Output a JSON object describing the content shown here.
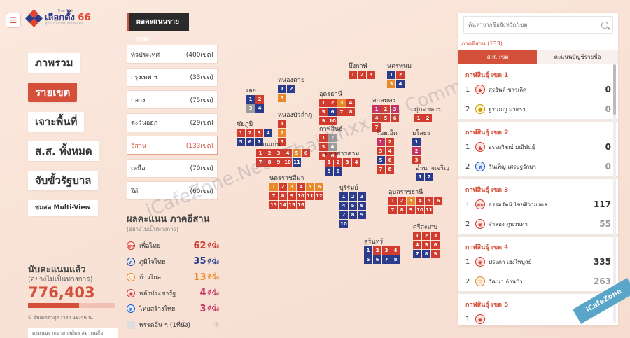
{
  "header": {
    "menu_icon": "hamburger-icon",
    "logo_small": "Thai PBS",
    "logo_title_a": "เลือกตั้ง",
    "logo_title_b": "66",
    "logo_subtitle": "คู่มือประชาชนนักเลือกตั้ง"
  },
  "nav": [
    {
      "label": "ภาพรวม",
      "active": false
    },
    {
      "label": "รายเขต",
      "active": true
    },
    {
      "label": "เจาะพื้นที่",
      "active": false
    },
    {
      "label": "ส.ส. ทั้งหมด",
      "active": false
    },
    {
      "label": "จับขั้วรัฐบาล",
      "active": false
    },
    {
      "label": "ชมสด Multi-View",
      "active": false
    }
  ],
  "count": {
    "label": "นับคะแนนแล้ว",
    "sub": "(อย่างไม่เป็นทางการ)",
    "value": "776,403",
    "progress": 0.58,
    "update": "อัปเดตล่าสุด เวลา 19:46 น.",
    "note": "คะแนนจากอาสาสมัคร สมาคมสื่อ, กกต."
  },
  "regions": {
    "title": "ผลคะแนนรายเขต",
    "items": [
      {
        "name": "ทั่วประเทศ",
        "count": "(400เขต)",
        "active": false
      },
      {
        "name": "กรุงเทพ ฯ",
        "count": "(33เขต)",
        "active": false
      },
      {
        "name": "กลาง",
        "count": "(75เขต)",
        "active": false
      },
      {
        "name": "ตะวันออก",
        "count": "(29เขต)",
        "active": false
      },
      {
        "name": "อีสาน",
        "count": "(133เขต)",
        "active": true
      },
      {
        "name": "เหนือ",
        "count": "(70เขต)",
        "active": false
      },
      {
        "name": "ใต้",
        "count": "(60เขต)",
        "active": false
      }
    ]
  },
  "party_summary": {
    "title": "ผลคะแนน ภาคอีสาน",
    "sub": "(อย่างไม่เป็นทางการ)",
    "unit": "ที่นั่ง",
    "items": [
      {
        "name": "เพื่อไทย",
        "count": "62",
        "color": "#d13c2f",
        "logo": "pheu-thai-logo",
        "glyph": "พท",
        "logo_class": "lg-red"
      },
      {
        "name": "ภูมิใจไทย",
        "count": "35",
        "color": "#2c3c8c",
        "logo": "bhumjaithai-logo",
        "glyph": "ภ",
        "logo_class": "lg-navy"
      },
      {
        "name": "ก้าวไกล",
        "count": "13",
        "color": "#e88a2a",
        "logo": "move-forward-logo",
        "glyph": "▽",
        "logo_class": "lg-orange"
      },
      {
        "name": "พลังประชารัฐ",
        "count": "4",
        "color": "#c23360",
        "logo": "palang-pracharat-logo",
        "glyph": "◉",
        "logo_class": "lg-red"
      },
      {
        "name": "ไทยสร้างไทย",
        "count": "3",
        "color": "#c23360",
        "logo": "thai-sang-thai-logo",
        "glyph": "ส",
        "logo_class": "lg-blue"
      },
      {
        "name": "พรรคอื่น ๆ (1ที่นั่ง)",
        "count": "",
        "color": "#666666",
        "logo": "others-logo",
        "glyph": "",
        "logo_class": "lg-grey"
      }
    ]
  },
  "map": [
    {
      "name": "บึงกาฬ",
      "cells": [
        [
          "1",
          "r"
        ],
        [
          "2",
          "r"
        ],
        [
          "3",
          "r"
        ]
      ]
    },
    {
      "name": "นครพนม",
      "cells": [
        [
          "1",
          "n"
        ],
        [
          "2",
          "r"
        ],
        [
          "3",
          "o"
        ],
        [
          "4",
          "n"
        ]
      ]
    },
    {
      "name": "หนองคาย",
      "cells": [
        [
          "1",
          "n"
        ],
        [
          "2",
          "n"
        ],
        [
          "3",
          "o"
        ]
      ]
    },
    {
      "name": "เลย",
      "cells": [
        [
          "1",
          "n"
        ],
        [
          "2",
          "r"
        ],
        [
          "3",
          "g"
        ],
        [
          "4",
          "n"
        ]
      ]
    },
    {
      "name": "อุดรธานี",
      "cells": [
        [
          "1",
          "r"
        ],
        [
          "2",
          "r"
        ],
        [
          "3",
          "o"
        ],
        [
          "4",
          "r"
        ],
        [
          "5",
          "r"
        ],
        [
          "6",
          "n"
        ],
        [
          "7",
          "r"
        ],
        [
          "8",
          "r"
        ],
        [
          "9",
          "r"
        ],
        [
          "10",
          "r"
        ]
      ]
    },
    {
      "name": "สกลนคร",
      "cells": [
        [
          "1",
          "m"
        ],
        [
          "2",
          "r"
        ],
        [
          "3",
          "m"
        ],
        [
          "4",
          "r"
        ],
        [
          "5",
          "r"
        ],
        [
          "6",
          "r"
        ],
        [
          "7",
          "r"
        ]
      ]
    },
    {
      "name": "มุกดาหาร",
      "cells": [
        [
          "1",
          "r"
        ],
        [
          "2",
          "r"
        ]
      ]
    },
    {
      "name": "หนองบัวลำภู",
      "cells": [
        [
          "1",
          "r"
        ],
        [
          "2",
          "o"
        ],
        [
          "3",
          "r"
        ]
      ]
    },
    {
      "name": "ชัยภูมิ",
      "cells": [
        [
          "1",
          "r"
        ],
        [
          "2",
          "r"
        ],
        [
          "3",
          "r"
        ],
        [
          "4",
          "n"
        ],
        [
          "5",
          "n"
        ],
        [
          "6",
          "n"
        ],
        [
          "7",
          "n"
        ]
      ]
    },
    {
      "name": "กาฬสินธุ์",
      "cells": [
        [
          "1",
          "r"
        ],
        [
          "2",
          "g"
        ],
        [
          "3",
          "r"
        ],
        [
          "4",
          "g"
        ],
        [
          "5",
          "r"
        ],
        [
          "6",
          "r"
        ]
      ]
    },
    {
      "name": "ร้อยเอ็ด",
      "cells": [
        [
          "1",
          "m"
        ],
        [
          "2",
          "r"
        ],
        [
          "3",
          "r"
        ],
        [
          "4",
          "r"
        ],
        [
          "5",
          "n"
        ],
        [
          "6",
          "r"
        ],
        [
          "7",
          "r"
        ],
        [
          "8",
          "r"
        ]
      ]
    },
    {
      "name": "ยโสธร",
      "cells": [
        [
          "1",
          "n"
        ],
        [
          "2",
          "m"
        ],
        [
          "3",
          "r"
        ]
      ]
    },
    {
      "name": "ขอนแก่น",
      "cells": [
        [
          "1",
          "r"
        ],
        [
          "2",
          "r"
        ],
        [
          "3",
          "r"
        ],
        [
          "4",
          "r"
        ],
        [
          "5",
          "o"
        ],
        [
          "6",
          "r"
        ],
        [
          "7",
          "r"
        ],
        [
          "8",
          "r"
        ],
        [
          "9",
          "r"
        ],
        [
          "10",
          "r"
        ],
        [
          "11",
          "n"
        ]
      ]
    },
    {
      "name": "มหาสารคาม",
      "cells": [
        [
          "1",
          "r"
        ],
        [
          "2",
          "r"
        ],
        [
          "3",
          "r"
        ],
        [
          "4",
          "r"
        ],
        [
          "5",
          "n"
        ],
        [
          "6",
          "n"
        ]
      ]
    },
    {
      "name": "อำนาจเจริญ",
      "cells": [
        [
          "1",
          "n"
        ],
        [
          "2",
          "n"
        ]
      ]
    },
    {
      "name": "นครราชสีมา",
      "cells": [
        [
          "1",
          "o"
        ],
        [
          "2",
          "r"
        ],
        [
          "3",
          "o"
        ],
        [
          "4",
          "r"
        ],
        [
          "5",
          "o"
        ],
        [
          "6",
          "o"
        ],
        [
          "7",
          "r"
        ],
        [
          "8",
          "r"
        ],
        [
          "9",
          "r"
        ],
        [
          "10",
          "r"
        ],
        [
          "11",
          "r"
        ],
        [
          "12",
          "r"
        ],
        [
          "13",
          "r"
        ],
        [
          "14",
          "r"
        ],
        [
          "15",
          "r"
        ],
        [
          "16",
          "r"
        ]
      ]
    },
    {
      "name": "บุรีรัมย์",
      "cells": [
        [
          "1",
          "n"
        ],
        [
          "2",
          "n"
        ],
        [
          "3",
          "n"
        ],
        [
          "4",
          "n"
        ],
        [
          "5",
          "n"
        ],
        [
          "6",
          "n"
        ],
        [
          "7",
          "n"
        ],
        [
          "8",
          "n"
        ],
        [
          "9",
          "n"
        ],
        [
          "10",
          "n"
        ]
      ]
    },
    {
      "name": "อุบลราชธานี",
      "cells": [
        [
          "1",
          "r"
        ],
        [
          "2",
          "r"
        ],
        [
          "3",
          "o"
        ],
        [
          "4",
          "r"
        ],
        [
          "5",
          "r"
        ],
        [
          "6",
          "r"
        ],
        [
          "7",
          "r"
        ],
        [
          "8",
          "r"
        ],
        [
          "9",
          "r"
        ],
        [
          "10",
          "r"
        ],
        [
          "11",
          "r"
        ]
      ]
    },
    {
      "name": "ศรีสะเกษ",
      "cells": [
        [
          "1",
          "r"
        ],
        [
          "2",
          "r"
        ],
        [
          "3",
          "r"
        ],
        [
          "4",
          "r"
        ],
        [
          "5",
          "r"
        ],
        [
          "6",
          "r"
        ],
        [
          "7",
          "n"
        ],
        [
          "8",
          "n"
        ],
        [
          "9",
          "r"
        ]
      ]
    },
    {
      "name": "สุรินทร์",
      "cells": [
        [
          "1",
          "n"
        ],
        [
          "2",
          "r"
        ],
        [
          "3",
          "r"
        ],
        [
          "4",
          "r"
        ],
        [
          "5",
          "n"
        ],
        [
          "6",
          "n"
        ],
        [
          "7",
          "n"
        ],
        [
          "8",
          "n"
        ]
      ]
    }
  ],
  "watermark": "iCafeZone.Net - Thai Xnxx Pro Community",
  "watermark_badge": "iCafeZone",
  "panel": {
    "search_placeholder": "ค้นหาจากชื่อจังหวัด/เขต",
    "region_label": "ภาคอีสาน (133)",
    "tab_district": "ส.ส. เขต",
    "tab_party": "คะแนนบัญชีรายชื่อ",
    "districts": [
      {
        "title": "กาฬสินธุ์ เขต 1",
        "candidates": [
          {
            "rank": "1",
            "name": "สุรยันต์ ชาวเลิศ",
            "votes": "0",
            "glyph": "◆",
            "logo_class": "lg-red",
            "lose": false
          },
          {
            "rank": "2",
            "name": "ฐานมญ มาตรา",
            "votes": "0",
            "glyph": "●",
            "logo_class": "lg-yellow",
            "lose": true
          }
        ]
      },
      {
        "title": "กาฬสินธุ์ เขต 2",
        "candidates": [
          {
            "rank": "1",
            "name": "อรรถวิชณ์ มณีพันธุ์",
            "votes": "0",
            "glyph": "▲",
            "logo_class": "lg-red",
            "lose": false
          },
          {
            "rank": "2",
            "name": "วันเพ็ญ เศรษฐรักษา",
            "votes": "0",
            "glyph": "ส",
            "logo_class": "lg-blue",
            "lose": true
          }
        ]
      },
      {
        "title": "กาฬสินธุ์ เขต 3",
        "candidates": [
          {
            "rank": "1",
            "name": "ธรรมรัตน์ ไชยศิวามงคล",
            "votes": "117",
            "glyph": "พท",
            "logo_class": "lg-red",
            "lose": false
          },
          {
            "rank": "2",
            "name": "จำลอง ภูนวนทา",
            "votes": "55",
            "glyph": "◉",
            "logo_class": "lg-red",
            "lose": true
          }
        ]
      },
      {
        "title": "กาฬสินธุ์ เขต 4",
        "candidates": [
          {
            "rank": "1",
            "name": "ประภา เฮงไพบูลย์",
            "votes": "335",
            "glyph": "◉",
            "logo_class": "lg-red",
            "lose": false
          },
          {
            "rank": "2",
            "name": "วัฒนา ก้านบัว",
            "votes": "263",
            "glyph": "▽",
            "logo_class": "lg-orange",
            "lose": true
          }
        ]
      },
      {
        "title": "กาฬสินธุ์ เขต 5",
        "candidates": [
          {
            "rank": "1",
            "name": "",
            "votes": "",
            "glyph": "◉",
            "logo_class": "lg-red",
            "lose": false
          }
        ]
      }
    ]
  }
}
